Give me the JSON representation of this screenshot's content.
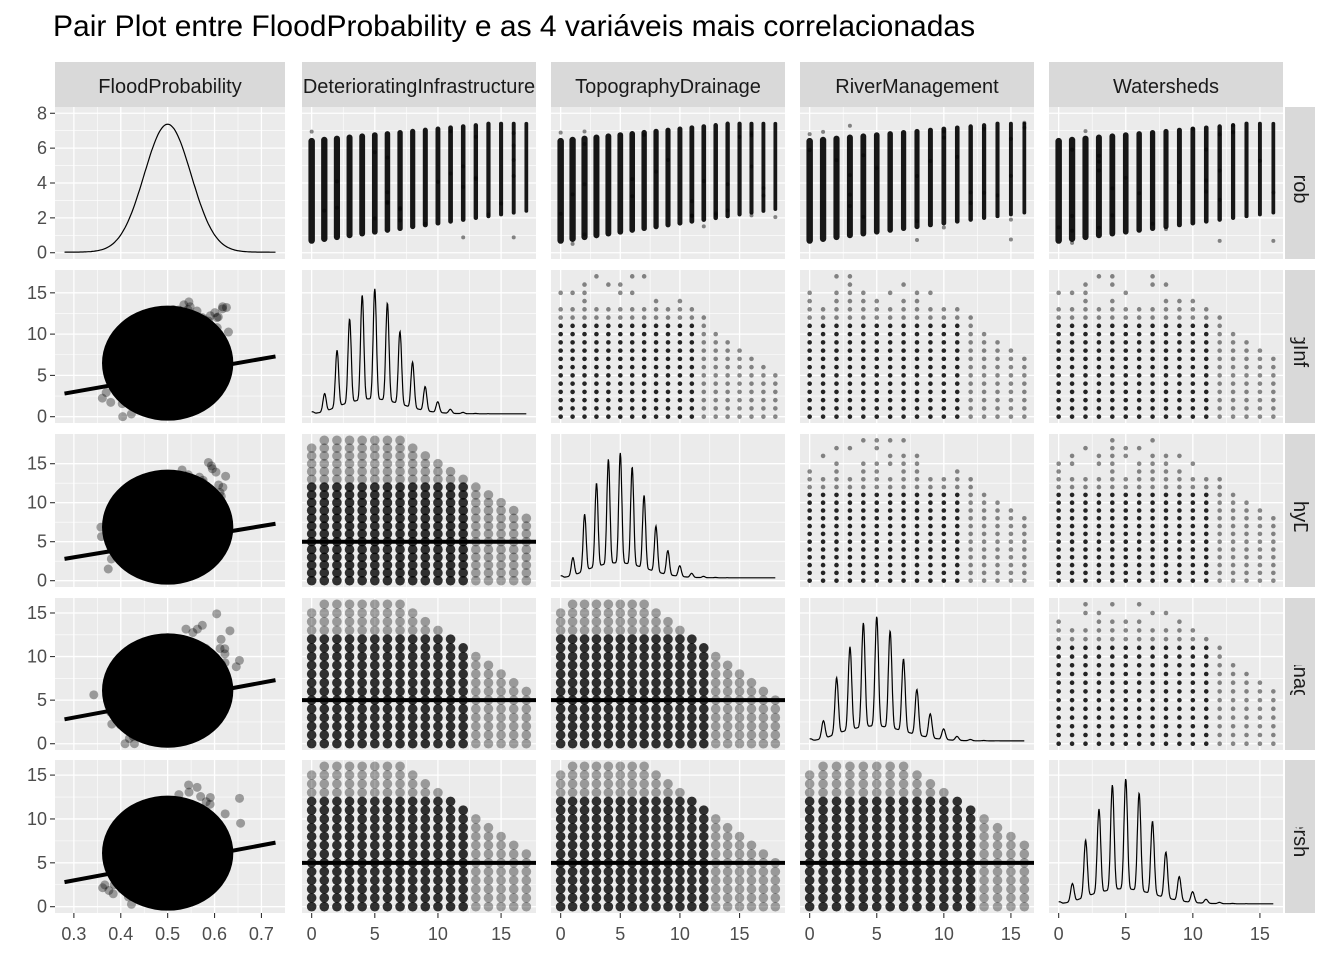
{
  "chart_data": {
    "type": "scatter",
    "title": "Pair Plot entre FloodProbability e as 4 variáveis mais correlacionadas",
    "variables": [
      "FloodProbability",
      "DeterioratingInfrastructure",
      "TopographyDrainage",
      "RiverManagement",
      "Watersheds"
    ],
    "x_ticks": [
      [
        "0.3",
        "0.4",
        "0.5",
        "0.6",
        "0.7"
      ],
      [
        "0",
        "5",
        "10",
        "15"
      ],
      [
        "0",
        "5",
        "10",
        "15"
      ],
      [
        "0",
        "5",
        "10",
        "15"
      ],
      [
        "0",
        "5",
        "10",
        "15"
      ]
    ],
    "y_ticks": [
      [
        "0",
        "2",
        "4",
        "6",
        "8"
      ],
      [
        "0",
        "5",
        "10",
        "15"
      ],
      [
        "0",
        "5",
        "10",
        "15"
      ],
      [
        "0",
        "5",
        "10",
        "15"
      ],
      [
        "0",
        "5",
        "10",
        "15"
      ]
    ],
    "ranges": {
      "FloodProbability": [
        0.28,
        0.73
      ],
      "DeterioratingInfrastructure": [
        0,
        17
      ],
      "TopographyDrainage": [
        0,
        18
      ],
      "RiverManagement": [
        0,
        16
      ],
      "Watersheds": [
        0,
        16
      ]
    },
    "density_ylim": [
      0,
      8
    ],
    "diagonal": "density",
    "upper_panels": "scatter of integer-valued pairs",
    "lower_panels": "scatter with linear trend line",
    "trend_lines": {
      "DeterioratingInfrastructure_vs_FloodProbability": [
        [
          0.28,
          2.8
        ],
        [
          0.73,
          7.3
        ]
      ],
      "TopographyDrainage_vs_FloodProbability": [
        [
          0.28,
          2.8
        ],
        [
          0.73,
          7.3
        ]
      ],
      "RiverManagement_vs_FloodProbability": [
        [
          0.28,
          2.8
        ],
        [
          0.73,
          7.3
        ]
      ],
      "Watersheds_vs_FloodProbability": [
        [
          0.28,
          2.8
        ],
        [
          0.73,
          7.3
        ]
      ],
      "flat_mean_level": 5
    },
    "grid": true,
    "panel_background": "#ebebeb",
    "strip_background": "#d9d9d9",
    "point_color": "#000000"
  }
}
